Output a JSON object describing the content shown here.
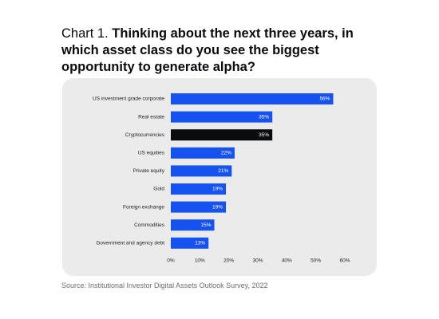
{
  "title": {
    "prefix": "Chart 1.",
    "text": "Thinking about the next three years, in which asset class do you see the biggest opportunity to generate alpha?"
  },
  "source": "Source: Institutional Investor Digital Assets Outlook Survey, 2022",
  "colors": {
    "bar": "#1652f0",
    "highlight": "#0a0b0d",
    "card": "#ebebeb"
  },
  "chart_data": {
    "type": "bar",
    "orientation": "horizontal",
    "categories": [
      "US investment grade corporate",
      "Real estate",
      "Cryptocurrencies",
      "US equities",
      "Private equity",
      "Gold",
      "Foreign exchange",
      "Commodities",
      "Government and agency debt"
    ],
    "values": [
      56,
      35,
      35,
      22,
      21,
      19,
      19,
      15,
      13
    ],
    "value_labels": [
      "56%",
      "35%",
      "35%",
      "22%",
      "21%",
      "19%",
      "19%",
      "15%",
      "13%"
    ],
    "highlight_index": 2,
    "xticks": [
      "0%",
      "10%",
      "20%",
      "30%",
      "40%",
      "50%",
      "60%"
    ],
    "xlim": [
      0,
      60
    ],
    "grid": false,
    "legend": false
  }
}
